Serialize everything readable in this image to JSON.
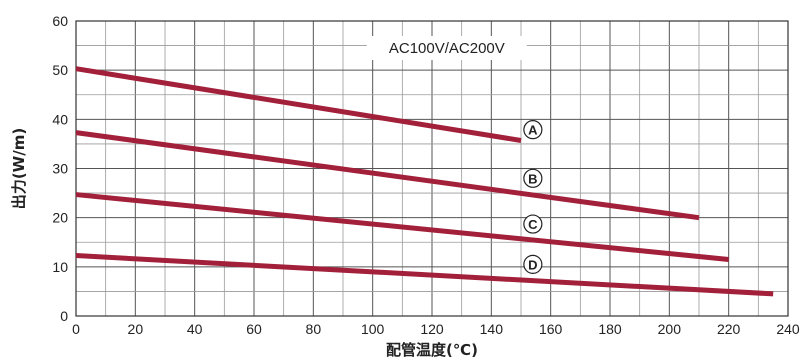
{
  "chart_data": {
    "type": "line",
    "title": "",
    "xlabel": "配管温度(℃)",
    "ylabel": "出力(W/m)",
    "xlim": [
      0,
      240
    ],
    "ylim": [
      0,
      60
    ],
    "x_ticks": [
      0,
      20,
      40,
      60,
      80,
      100,
      120,
      140,
      160,
      180,
      200,
      220,
      240
    ],
    "y_ticks": [
      0,
      10,
      20,
      30,
      40,
      50,
      60
    ],
    "grid": true,
    "annotation": "AC100V/AC200V",
    "series_color": "#a3203a",
    "series": [
      {
        "name": "A",
        "x": [
          0,
          150
        ],
        "y": [
          50.3,
          35.7
        ]
      },
      {
        "name": "B",
        "x": [
          0,
          210
        ],
        "y": [
          37.3,
          20.0
        ]
      },
      {
        "name": "C",
        "x": [
          0,
          220
        ],
        "y": [
          24.7,
          11.5
        ]
      },
      {
        "name": "D",
        "x": [
          0,
          235
        ],
        "y": [
          12.3,
          4.5
        ]
      }
    ]
  }
}
